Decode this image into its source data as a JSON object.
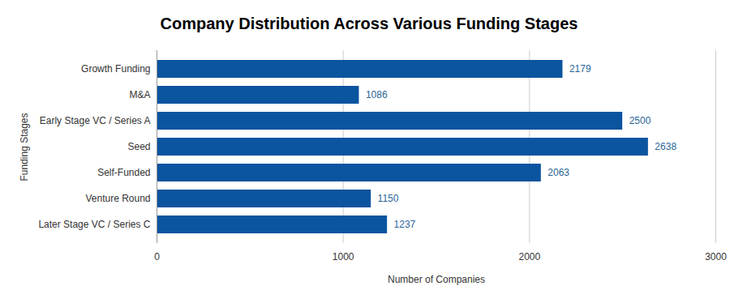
{
  "chart_data": {
    "type": "bar",
    "orientation": "horizontal",
    "title": "Company Distribution Across Various Funding Stages",
    "x_label": "Number of Companies",
    "y_label": "Funding Stages",
    "categories": [
      "Growth Funding",
      "M&A",
      "Early Stage VC / Series A",
      "Seed",
      "Self-Funded",
      "Venture Round",
      "Later Stage VC / Series C"
    ],
    "values": [
      2179,
      1086,
      2500,
      2638,
      2063,
      1150,
      1237
    ],
    "color": "#0b549f",
    "xlim": [
      0,
      3000
    ],
    "xticks": [
      0,
      1000,
      2000,
      3000
    ],
    "grid": true,
    "data_labels": true
  }
}
